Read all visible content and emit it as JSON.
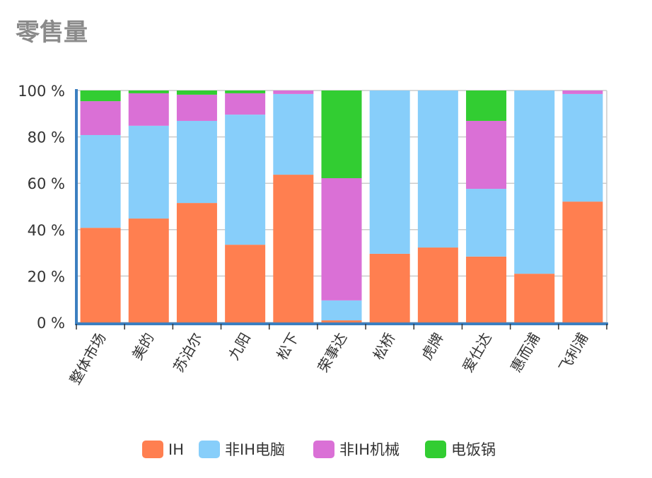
{
  "chart_data": {
    "type": "bar",
    "stacked": "percent",
    "title": "零售量",
    "xlabel": "",
    "ylabel": "",
    "ylim": [
      0,
      100
    ],
    "yticks": [
      "0 %",
      "20 %",
      "40 %",
      "60 %",
      "80 %",
      "100 %"
    ],
    "grid": true,
    "legend": "bottom",
    "categories": [
      "整体市场",
      "美的",
      "苏泊尔",
      "九阳",
      "松下",
      "荣事达",
      "松桥",
      "虎牌",
      "爱仕达",
      "惠而浦",
      "飞利浦"
    ],
    "series": [
      {
        "name": "IH",
        "color": "#ff7f50",
        "values": [
          40.8,
          44.8,
          51.5,
          33.5,
          63.7,
          0.9,
          29.6,
          32.3,
          28.4,
          21.0,
          52.1
        ]
      },
      {
        "name": "非IH电脑",
        "color": "#87cefa",
        "values": [
          40.0,
          40.0,
          35.4,
          56.1,
          34.8,
          8.6,
          70.4,
          67.7,
          29.2,
          79.0,
          46.4
        ]
      },
      {
        "name": "非IH机械",
        "color": "#da70d6",
        "values": [
          14.6,
          14.0,
          11.3,
          9.2,
          1.5,
          52.7,
          0,
          0,
          29.3,
          0,
          1.5
        ]
      },
      {
        "name": "电饭锅",
        "color": "#32cd32",
        "values": [
          4.6,
          1.2,
          1.8,
          1.2,
          0,
          37.8,
          0,
          0,
          13.1,
          0,
          0
        ]
      }
    ]
  }
}
